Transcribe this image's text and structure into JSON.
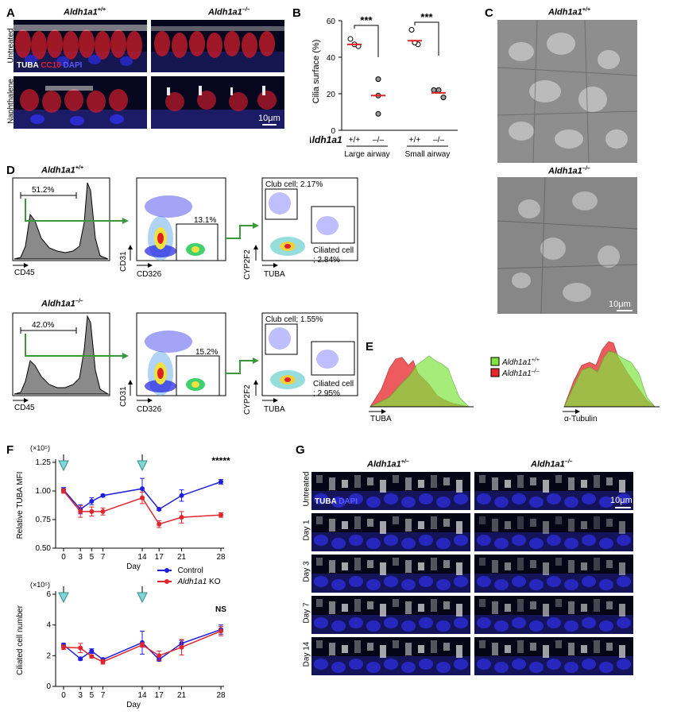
{
  "panel_A": {
    "letter": "A",
    "col_wt": "Aldh1a1",
    "col_wt_sup": "+/+",
    "col_ko": "Aldh1a1",
    "col_ko_sup": "–/–",
    "rows": [
      "Untreated",
      "Naphthalene"
    ],
    "stain_tuba": "TUBA",
    "stain_cc10": "CC10",
    "stain_dapi": "DAPI",
    "scale": "10μm"
  },
  "panel_B": {
    "letter": "B",
    "ylabel": "Cilia surface (%)",
    "yticks": [
      "0",
      "20",
      "40",
      "60"
    ],
    "gene": "Aldh1a1",
    "genotypes": [
      "+/+",
      "–/–",
      "+/+",
      "–/–"
    ],
    "groups": [
      "Large airway",
      "Small airway"
    ],
    "sig": [
      "***",
      "***"
    ]
  },
  "panel_C": {
    "letter": "C",
    "top_title": "Aldh1a1",
    "top_sup": "+/+",
    "bottom_title": "Aldh1a1",
    "bottom_sup": "–/–",
    "scale": "10μm"
  },
  "panel_D": {
    "letter": "D",
    "wt_title": "Aldh1a1",
    "wt_sup": "+/+",
    "ko_title": "Aldh1a1",
    "ko_sup": "–/–",
    "wt_cd45_gate": "51.2%",
    "ko_cd45_gate": "42.0%",
    "wt_cd326_gate": "13.1%",
    "ko_cd326_gate": "15.2%",
    "wt_club": "Club cell; 2.17%",
    "ko_club": "Club cell; 1.55%",
    "wt_ciliated_1": "Ciliated cell",
    "wt_ciliated_2": "; 2.84%",
    "ko_ciliated_1": "Ciliated cell",
    "ko_ciliated_2": "; 2.95%",
    "axis_cd45": "CD45",
    "axis_cd31": "CD31",
    "axis_cd326": "CD326",
    "axis_cyp2f2": "CYP2F2",
    "axis_tuba": "TUBA"
  },
  "panel_E": {
    "letter": "E",
    "legend_wt": "Aldh1a1",
    "legend_wt_sup": "+/+",
    "legend_ko": "Aldh1a1",
    "legend_ko_sup": "–/–",
    "legend_wt_color": "#7fe640",
    "legend_ko_color": "#e8252a",
    "x1": "TUBA",
    "x2": "α-Tubulin"
  },
  "panel_F": {
    "letter": "F",
    "top_exp": "(×10⁵)",
    "bottom_exp": "(×10⁵)",
    "legend_control": "Control",
    "legend_ko": "Aldh1a1",
    "legend_ko_suffix": "KO",
    "control_color": "#1f1fdc",
    "ko_color": "#e0262d",
    "arrow_color": "#7fd7d7"
  },
  "chart_data": [
    {
      "type": "scatter",
      "title": "",
      "ylabel": "Cilia surface (%)",
      "ylim": [
        0,
        60
      ],
      "categories": [
        "Large airway +/+",
        "Large airway –/–",
        "Small airway +/+",
        "Small airway –/–"
      ],
      "series": [
        {
          "name": "+/+ Large",
          "values": [
            50,
            46,
            47
          ]
        },
        {
          "name": "–/– Large",
          "values": [
            28,
            19,
            9
          ]
        },
        {
          "name": "+/+ Small",
          "values": [
            55,
            47,
            48
          ]
        },
        {
          "name": "–/– Small",
          "values": [
            22,
            18,
            22
          ]
        }
      ],
      "means": [
        47,
        19,
        49,
        20.5
      ],
      "significance": [
        "***",
        "***"
      ]
    },
    {
      "type": "line",
      "title": "",
      "xlabel": "Day",
      "ylabel": "Relative TUBA MFI",
      "ylim": [
        0.5,
        1.25
      ],
      "yticks": [
        0.5,
        0.75,
        1.0,
        1.25
      ],
      "x": [
        0,
        3,
        5,
        7,
        14,
        17,
        21,
        28
      ],
      "series": [
        {
          "name": "Control",
          "values": [
            1.01,
            0.84,
            0.91,
            0.96,
            1.02,
            0.84,
            0.96,
            1.08
          ],
          "err": [
            0.02,
            0.04,
            0.03,
            0.01,
            0.09,
            0.01,
            0.05,
            0.02
          ]
        },
        {
          "name": "Aldh1a1 KO",
          "values": [
            1.0,
            0.82,
            0.82,
            0.82,
            0.94,
            0.71,
            0.77,
            0.79
          ],
          "err": [
            0.02,
            0.05,
            0.04,
            0.03,
            0.05,
            0.03,
            0.05,
            0.02
          ]
        }
      ],
      "annotation": "*****",
      "arrows_at_day": [
        0,
        14
      ]
    },
    {
      "type": "line",
      "title": "",
      "xlabel": "Day",
      "ylabel": "Ciliated cell number",
      "ylim": [
        0,
        6
      ],
      "yticks": [
        0,
        2,
        4,
        6
      ],
      "x": [
        0,
        3,
        5,
        7,
        14,
        17,
        21,
        28
      ],
      "series": [
        {
          "name": "Control",
          "values": [
            2.7,
            1.8,
            2.3,
            1.75,
            2.85,
            1.75,
            2.8,
            3.7
          ],
          "err": [
            0.1,
            0.1,
            0.15,
            0.1,
            0.75,
            0.1,
            0.2,
            0.3
          ]
        },
        {
          "name": "Aldh1a1 KO",
          "values": [
            2.55,
            2.5,
            1.95,
            1.6,
            2.7,
            2.0,
            2.55,
            3.6
          ],
          "err": [
            0.15,
            0.3,
            0.1,
            0.15,
            0.15,
            0.3,
            0.5,
            0.3
          ]
        }
      ],
      "annotation": "NS",
      "arrows_at_day": [
        0,
        14
      ]
    }
  ],
  "panel_G": {
    "letter": "G",
    "col_wt": "Aldh1a1",
    "col_wt_sup": "+/–",
    "col_ko": "Aldh1a1",
    "col_ko_sup": "–/–",
    "rows": [
      "Untreated",
      "Day 1",
      "Day 3",
      "Day 7",
      "Day 14"
    ],
    "stain_tuba": "TUBA",
    "stain_dapi": "DAPI",
    "scale": "10μm"
  }
}
